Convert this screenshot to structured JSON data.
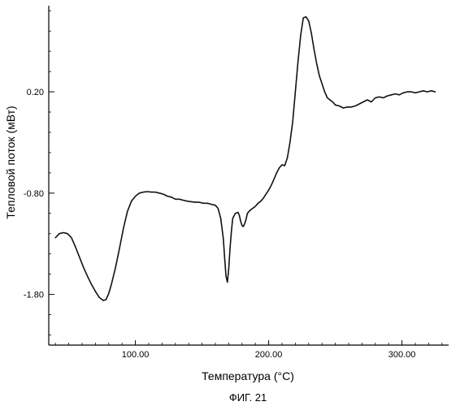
{
  "chart_data": {
    "type": "line",
    "title": "",
    "xlabel": "Температура (°C)",
    "ylabel": "Тепловой поток (мВт)",
    "caption": "ФИГ. 21",
    "xlim": [
      35,
      335
    ],
    "ylim": [
      -2.3,
      1.05
    ],
    "x_ticks": [
      {
        "value": 100,
        "label": "100.00"
      },
      {
        "value": 200,
        "label": "200.00"
      },
      {
        "value": 300,
        "label": "300.00"
      }
    ],
    "y_ticks": [
      {
        "value": 0.2,
        "label": "0.20"
      },
      {
        "value": -0.8,
        "label": "-0.80"
      },
      {
        "value": -1.8,
        "label": "-1.80"
      }
    ],
    "grid": false,
    "line_color": "#111111",
    "series": [
      {
        "name": "",
        "points": [
          [
            40,
            -1.24
          ],
          [
            43,
            -1.2
          ],
          [
            46,
            -1.19
          ],
          [
            49,
            -1.2
          ],
          [
            52,
            -1.24
          ],
          [
            55,
            -1.33
          ],
          [
            58,
            -1.43
          ],
          [
            61,
            -1.53
          ],
          [
            64,
            -1.62
          ],
          [
            67,
            -1.7
          ],
          [
            70,
            -1.77
          ],
          [
            73,
            -1.83
          ],
          [
            76,
            -1.86
          ],
          [
            78,
            -1.85
          ],
          [
            80,
            -1.79
          ],
          [
            82,
            -1.7
          ],
          [
            85,
            -1.54
          ],
          [
            88,
            -1.35
          ],
          [
            91,
            -1.15
          ],
          [
            94,
            -0.98
          ],
          [
            97,
            -0.88
          ],
          [
            100,
            -0.83
          ],
          [
            103,
            -0.8
          ],
          [
            106,
            -0.79
          ],
          [
            109,
            -0.785
          ],
          [
            112,
            -0.79
          ],
          [
            115,
            -0.79
          ],
          [
            118,
            -0.8
          ],
          [
            121,
            -0.81
          ],
          [
            124,
            -0.83
          ],
          [
            127,
            -0.84
          ],
          [
            130,
            -0.86
          ],
          [
            133,
            -0.86
          ],
          [
            136,
            -0.87
          ],
          [
            139,
            -0.88
          ],
          [
            142,
            -0.885
          ],
          [
            145,
            -0.89
          ],
          [
            148,
            -0.89
          ],
          [
            151,
            -0.9
          ],
          [
            154,
            -0.9
          ],
          [
            157,
            -0.91
          ],
          [
            160,
            -0.92
          ],
          [
            162,
            -0.95
          ],
          [
            164,
            -1.05
          ],
          [
            166,
            -1.25
          ],
          [
            167,
            -1.45
          ],
          [
            168,
            -1.62
          ],
          [
            169,
            -1.68
          ],
          [
            170,
            -1.55
          ],
          [
            171,
            -1.35
          ],
          [
            172,
            -1.18
          ],
          [
            173,
            -1.05
          ],
          [
            175,
            -1.0
          ],
          [
            177,
            -0.99
          ],
          [
            178,
            -1.02
          ],
          [
            179,
            -1.08
          ],
          [
            180,
            -1.12
          ],
          [
            181,
            -1.13
          ],
          [
            182,
            -1.1
          ],
          [
            183,
            -1.06
          ],
          [
            184,
            -1.0
          ],
          [
            186,
            -0.97
          ],
          [
            188,
            -0.95
          ],
          [
            190,
            -0.93
          ],
          [
            192,
            -0.9
          ],
          [
            194,
            -0.88
          ],
          [
            196,
            -0.85
          ],
          [
            198,
            -0.81
          ],
          [
            200,
            -0.77
          ],
          [
            202,
            -0.72
          ],
          [
            204,
            -0.66
          ],
          [
            206,
            -0.6
          ],
          [
            208,
            -0.55
          ],
          [
            210,
            -0.52
          ],
          [
            212,
            -0.53
          ],
          [
            214,
            -0.45
          ],
          [
            216,
            -0.3
          ],
          [
            218,
            -0.1
          ],
          [
            220,
            0.2
          ],
          [
            222,
            0.5
          ],
          [
            224,
            0.76
          ],
          [
            226,
            0.93
          ],
          [
            228,
            0.94
          ],
          [
            230,
            0.9
          ],
          [
            232,
            0.78
          ],
          [
            234,
            0.62
          ],
          [
            236,
            0.48
          ],
          [
            238,
            0.36
          ],
          [
            240,
            0.28
          ],
          [
            242,
            0.2
          ],
          [
            244,
            0.14
          ],
          [
            246,
            0.12
          ],
          [
            248,
            0.1
          ],
          [
            250,
            0.07
          ],
          [
            253,
            0.06
          ],
          [
            256,
            0.04
          ],
          [
            259,
            0.05
          ],
          [
            262,
            0.05
          ],
          [
            265,
            0.06
          ],
          [
            268,
            0.08
          ],
          [
            271,
            0.1
          ],
          [
            274,
            0.12
          ],
          [
            277,
            0.1
          ],
          [
            280,
            0.14
          ],
          [
            283,
            0.15
          ],
          [
            286,
            0.14
          ],
          [
            289,
            0.16
          ],
          [
            292,
            0.17
          ],
          [
            295,
            0.18
          ],
          [
            298,
            0.17
          ],
          [
            301,
            0.19
          ],
          [
            304,
            0.2
          ],
          [
            307,
            0.2
          ],
          [
            310,
            0.19
          ],
          [
            313,
            0.2
          ],
          [
            316,
            0.21
          ],
          [
            319,
            0.2
          ],
          [
            322,
            0.21
          ],
          [
            325,
            0.2
          ]
        ]
      }
    ]
  }
}
